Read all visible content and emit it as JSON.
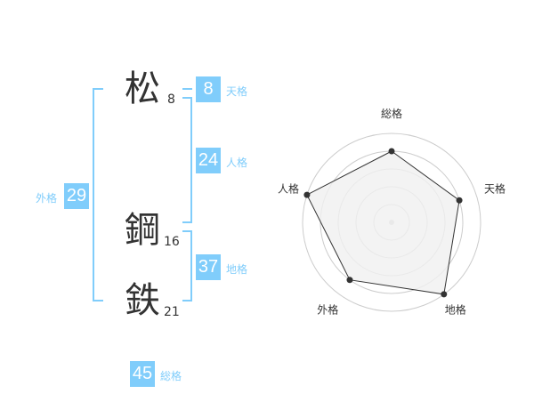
{
  "name": {
    "chars": [
      {
        "char": "松",
        "strokes": "8"
      },
      {
        "char": "鋼",
        "strokes": "16"
      },
      {
        "char": "鉄",
        "strokes": "21"
      }
    ]
  },
  "kaku": {
    "tenkaku": {
      "label": "天格",
      "value": "8"
    },
    "jinkaku": {
      "label": "人格",
      "value": "24"
    },
    "chikaku": {
      "label": "地格",
      "value": "37"
    },
    "gaikaku": {
      "label": "外格",
      "value": "29"
    },
    "soukaku": {
      "label": "総格",
      "value": "45"
    }
  },
  "chart_data": {
    "type": "radar",
    "axes": [
      "総格",
      "天格",
      "地格",
      "外格",
      "人格"
    ],
    "values": [
      4,
      4,
      5,
      4,
      5
    ],
    "range": [
      0,
      5
    ],
    "grid_rings": 5,
    "colors": {
      "fill": "#f0f0f0",
      "line": "#333333",
      "grid": "#cccccc",
      "accent": "#80cdfb"
    }
  }
}
